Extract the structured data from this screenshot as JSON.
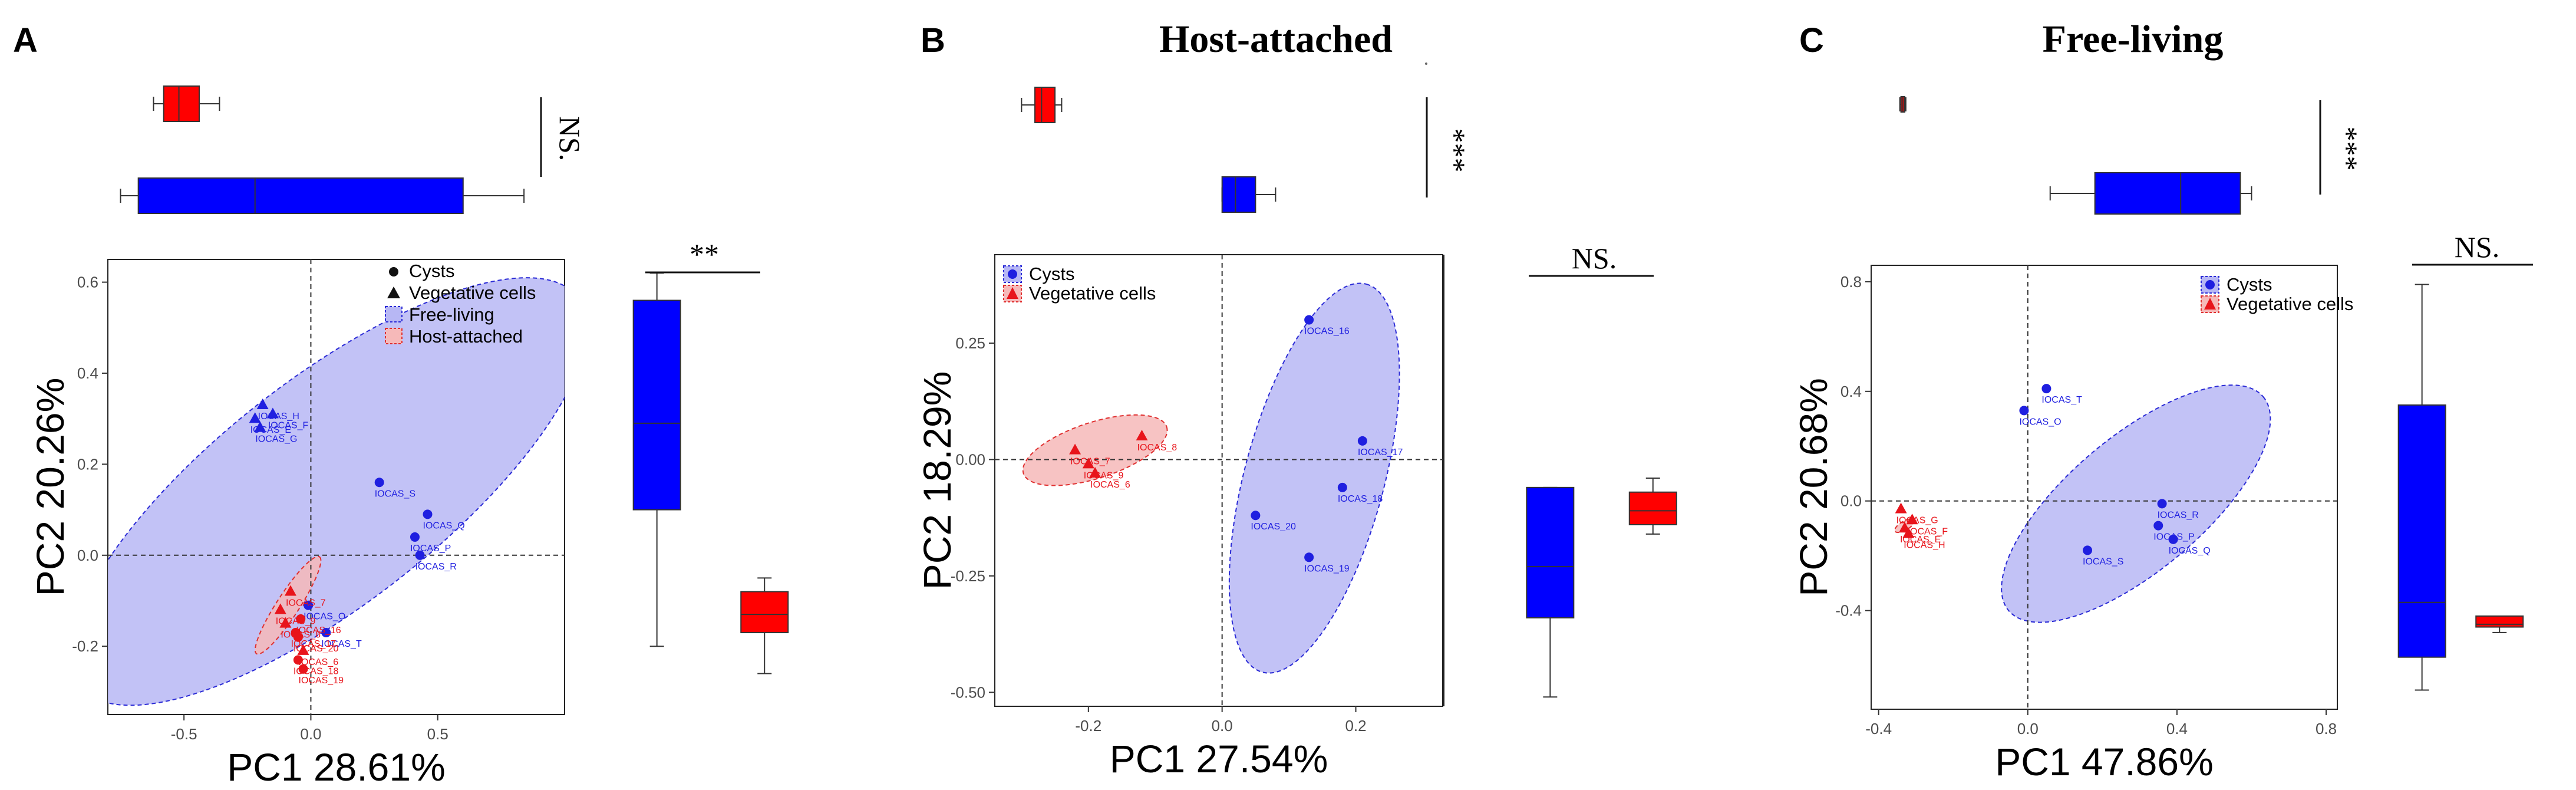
{
  "colors": {
    "cyst": "#1f1fe0",
    "vegetative": "#e8141b",
    "box_blue": "#0000ff",
    "box_red": "#ff0000",
    "ellipse_free_fill": "#b7b7f4",
    "ellipse_free_edge": "#2b2bd6",
    "ellipse_host_fill": "#f6b9b9",
    "ellipse_host_edge": "#e03030"
  },
  "chart_data": [
    {
      "panel": "A",
      "type": "scatter",
      "title": "",
      "xlabel": "PC1 28.61%",
      "ylabel": "PC2 20.26%",
      "xlim": [
        -0.8,
        1.0
      ],
      "ylim": [
        -0.35,
        0.65
      ],
      "xticks": [
        -0.5,
        0.0,
        0.5
      ],
      "xtick_labels": [
        "-0.5",
        "0.0",
        "0.5"
      ],
      "yticks": [
        -0.2,
        0.0,
        0.2,
        0.4,
        0.6
      ],
      "ytick_labels": [
        "-0.2",
        "0.0",
        "0.2",
        "0.4",
        "0.6"
      ],
      "legend": [
        "Cysts",
        "Vegetative cells",
        "Free-living",
        "Host-attached"
      ],
      "legend_position": "top-right",
      "reference_lines": {
        "x": 0,
        "y": 0
      },
      "ellipses": [
        {
          "group": "Free-living",
          "cx": 0.07,
          "cy": 0.14,
          "rx": 0.93,
          "ry": 0.33,
          "angle_deg": 38.0
        },
        {
          "group": "Host-attached",
          "cx": -0.09,
          "cy": -0.11,
          "rx": 0.17,
          "ry": 0.033,
          "angle_deg": 57.0
        }
      ],
      "points": [
        {
          "label": "IOCAS_H",
          "x": -0.19,
          "y": 0.33,
          "shape": "triangle",
          "group": "Free-living"
        },
        {
          "label": "IOCAS_E",
          "x": -0.22,
          "y": 0.3,
          "shape": "triangle",
          "group": "Free-living"
        },
        {
          "label": "IOCAS_F",
          "x": -0.15,
          "y": 0.31,
          "shape": "triangle",
          "group": "Free-living"
        },
        {
          "label": "IOCAS_G",
          "x": -0.2,
          "y": 0.28,
          "shape": "triangle",
          "group": "Free-living"
        },
        {
          "label": "IOCAS_S",
          "x": 0.27,
          "y": 0.16,
          "shape": "circle",
          "group": "Free-living"
        },
        {
          "label": "IOCAS_Q",
          "x": 0.46,
          "y": 0.09,
          "shape": "circle",
          "group": "Free-living"
        },
        {
          "label": "IOCAS_P",
          "x": 0.41,
          "y": 0.04,
          "shape": "circle",
          "group": "Free-living"
        },
        {
          "label": "IOCAS_R",
          "x": 0.43,
          "y": 0.0,
          "shape": "circle",
          "group": "Free-living"
        },
        {
          "label": "IOCAS_O",
          "x": -0.01,
          "y": -0.11,
          "shape": "circle",
          "group": "Free-living"
        },
        {
          "label": "IOCAS_T",
          "x": 0.06,
          "y": -0.17,
          "shape": "circle",
          "group": "Free-living"
        },
        {
          "label": "IOCAS_7",
          "x": -0.08,
          "y": -0.08,
          "shape": "triangle",
          "group": "Host-attached"
        },
        {
          "label": "IOCAS_9",
          "x": -0.12,
          "y": -0.12,
          "shape": "triangle",
          "group": "Host-attached"
        },
        {
          "label": "IOCAS_16",
          "x": -0.04,
          "y": -0.14,
          "shape": "circle",
          "group": "Host-attached"
        },
        {
          "label": "IOCAS_8",
          "x": -0.1,
          "y": -0.15,
          "shape": "triangle",
          "group": "Host-attached"
        },
        {
          "label": "IOCAS_17",
          "x": -0.06,
          "y": -0.17,
          "shape": "circle",
          "group": "Host-attached"
        },
        {
          "label": "IOCAS_20",
          "x": -0.05,
          "y": -0.18,
          "shape": "circle",
          "group": "Host-attached"
        },
        {
          "label": "IOCAS_6",
          "x": -0.03,
          "y": -0.21,
          "shape": "triangle",
          "group": "Host-attached"
        },
        {
          "label": "IOCAS_18",
          "x": -0.05,
          "y": -0.23,
          "shape": "circle",
          "group": "Host-attached"
        },
        {
          "label": "IOCAS_19",
          "x": -0.03,
          "y": -0.25,
          "shape": "circle",
          "group": "Host-attached"
        }
      ],
      "boxplot_pc1": {
        "significance": "NS.",
        "boxes": [
          {
            "group": "Host-attached",
            "whisker_low": -0.62,
            "q1": -0.58,
            "median": -0.52,
            "q3": -0.44,
            "whisker_high": -0.36
          },
          {
            "group": "Free-living",
            "whisker_low": -0.75,
            "q1": -0.68,
            "median": -0.22,
            "q3": 0.6,
            "whisker_high": 0.84
          }
        ]
      },
      "boxplot_pc2": {
        "significance": "**",
        "boxes": [
          {
            "group": "Free-living",
            "whisker_low": -0.2,
            "q1": 0.1,
            "median": 0.29,
            "q3": 0.56,
            "whisker_high": 0.62
          },
          {
            "group": "Host-attached",
            "whisker_low": -0.26,
            "q1": -0.17,
            "median": -0.13,
            "q3": -0.08,
            "whisker_high": -0.05
          }
        ]
      }
    },
    {
      "panel": "B",
      "type": "scatter",
      "title": "Host-attached",
      "xlabel": "PC1 27.54%",
      "ylabel": "PC2 18.29%",
      "xlim": [
        -0.34,
        0.33
      ],
      "ylim": [
        -0.53,
        0.44
      ],
      "xticks": [
        -0.2,
        0.0,
        0.2
      ],
      "xtick_labels": [
        "-0.2",
        "0.0",
        "0.2"
      ],
      "yticks": [
        -0.5,
        -0.25,
        0.0,
        0.25
      ],
      "ytick_labels": [
        "-0.50",
        "-0.25",
        "0.00",
        "0.25"
      ],
      "legend": [
        "Cysts",
        "Vegetative cells"
      ],
      "legend_position": "top-left",
      "reference_lines": {
        "x": 0,
        "y": 0
      },
      "ellipses": [
        {
          "group": "Cysts",
          "cx": 0.138,
          "cy": -0.04,
          "rx": 0.36,
          "ry": 0.125,
          "angle_deg": 75.0
        },
        {
          "group": "Vegetative cells",
          "cx": -0.19,
          "cy": 0.02,
          "rx": 0.135,
          "ry": 0.05,
          "angle_deg": 18.0
        }
      ],
      "points": [
        {
          "label": "IOCAS_16",
          "x": 0.13,
          "y": 0.3,
          "shape": "circle",
          "group": "Cysts"
        },
        {
          "label": "IOCAS_17",
          "x": 0.21,
          "y": 0.04,
          "shape": "circle",
          "group": "Cysts"
        },
        {
          "label": "IOCAS_18",
          "x": 0.18,
          "y": -0.06,
          "shape": "circle",
          "group": "Cysts"
        },
        {
          "label": "IOCAS_20",
          "x": 0.05,
          "y": -0.12,
          "shape": "circle",
          "group": "Cysts"
        },
        {
          "label": "IOCAS_19",
          "x": 0.13,
          "y": -0.21,
          "shape": "circle",
          "group": "Cysts"
        },
        {
          "label": "IOCAS_7",
          "x": -0.22,
          "y": 0.02,
          "shape": "triangle",
          "group": "Vegetative cells"
        },
        {
          "label": "IOCAS_8",
          "x": -0.12,
          "y": 0.05,
          "shape": "triangle",
          "group": "Vegetative cells"
        },
        {
          "label": "IOCAS_9",
          "x": -0.2,
          "y": -0.01,
          "shape": "triangle",
          "group": "Vegetative cells"
        },
        {
          "label": "IOCAS_6",
          "x": -0.19,
          "y": -0.03,
          "shape": "triangle",
          "group": "Vegetative cells"
        }
      ],
      "boxplot_pc1": {
        "significance": "***",
        "boxes": [
          {
            "group": "Vegetative cells",
            "whisker_low": -0.3,
            "q1": -0.28,
            "median": -0.27,
            "q3": -0.25,
            "whisker_high": -0.24
          },
          {
            "group": "Cysts",
            "whisker_low": 0.0,
            "q1": 0.0,
            "median": 0.02,
            "q3": 0.05,
            "whisker_high": 0.08
          }
        ]
      },
      "boxplot_pc2": {
        "significance": "NS.",
        "boxes": [
          {
            "group": "Cysts",
            "whisker_low": -0.51,
            "q1": -0.34,
            "median": -0.23,
            "q3": -0.06,
            "whisker_high": -0.06
          },
          {
            "group": "Vegetative cells",
            "whisker_low": -0.16,
            "q1": -0.14,
            "median": -0.11,
            "q3": -0.07,
            "whisker_high": -0.04
          }
        ]
      }
    },
    {
      "panel": "C",
      "type": "scatter",
      "title": "Free-living",
      "xlabel": "PC1 47.86%",
      "ylabel": "PC2 20.68%",
      "xlim": [
        -0.42,
        0.83
      ],
      "ylim": [
        -0.76,
        0.86
      ],
      "xticks": [
        -0.4,
        0.0,
        0.4,
        0.8
      ],
      "xtick_labels": [
        "-0.4",
        "0.0",
        "0.4",
        "0.8"
      ],
      "yticks": [
        -0.4,
        0.0,
        0.4,
        0.8
      ],
      "ytick_labels": [
        "-0.4",
        "0.0",
        "0.4",
        "0.8"
      ],
      "legend": [
        "Cysts",
        "Vegetative cells"
      ],
      "legend_position": "top-right",
      "reference_lines": {
        "x": 0,
        "y": 0
      },
      "ellipses": [
        {
          "group": "Cysts",
          "cx": 0.29,
          "cy": -0.01,
          "rx": 0.52,
          "ry": 0.21,
          "angle_deg": 40.0
        },
        {
          "group": "Vegetative cells",
          "cx": -0.33,
          "cy": -0.09,
          "rx": 0.035,
          "ry": 0.014,
          "angle_deg": 30.0
        }
      ],
      "points": [
        {
          "label": "IOCAS_T",
          "x": 0.05,
          "y": 0.41,
          "shape": "circle",
          "group": "Cysts"
        },
        {
          "label": "IOCAS_O",
          "x": -0.01,
          "y": 0.33,
          "shape": "circle",
          "group": "Cysts"
        },
        {
          "label": "IOCAS_R",
          "x": 0.36,
          "y": -0.01,
          "shape": "circle",
          "group": "Cysts"
        },
        {
          "label": "IOCAS_P",
          "x": 0.35,
          "y": -0.09,
          "shape": "circle",
          "group": "Cysts"
        },
        {
          "label": "IOCAS_Q",
          "x": 0.39,
          "y": -0.14,
          "shape": "circle",
          "group": "Cysts"
        },
        {
          "label": "IOCAS_S",
          "x": 0.16,
          "y": -0.18,
          "shape": "circle",
          "group": "Cysts"
        },
        {
          "label": "IOCAS_G",
          "x": -0.34,
          "y": -0.03,
          "shape": "triangle",
          "group": "Vegetative cells"
        },
        {
          "label": "IOCAS_F",
          "x": -0.31,
          "y": -0.07,
          "shape": "triangle",
          "group": "Vegetative cells"
        },
        {
          "label": "IOCAS_E",
          "x": -0.33,
          "y": -0.1,
          "shape": "triangle",
          "group": "Vegetative cells"
        },
        {
          "label": "IOCAS_H",
          "x": -0.32,
          "y": -0.12,
          "shape": "triangle",
          "group": "Vegetative cells"
        }
      ],
      "boxplot_pc1": {
        "significance": "***",
        "boxes": [
          {
            "group": "Vegetative cells",
            "whisker_low": -0.343,
            "q1": -0.34,
            "median": -0.335,
            "q3": -0.33,
            "whisker_high": -0.327
          },
          {
            "group": "Cysts",
            "whisker_low": 0.06,
            "q1": 0.18,
            "median": 0.41,
            "q3": 0.57,
            "whisker_high": 0.6
          }
        ]
      },
      "boxplot_pc2": {
        "significance": "NS.",
        "boxes": [
          {
            "group": "Cysts",
            "whisker_low": -0.69,
            "q1": -0.57,
            "median": -0.37,
            "q3": 0.35,
            "whisker_high": 0.79
          },
          {
            "group": "Vegetative cells",
            "whisker_low": -0.48,
            "q1": -0.46,
            "median": -0.45,
            "q3": -0.42,
            "whisker_high": -0.42
          }
        ]
      }
    }
  ]
}
